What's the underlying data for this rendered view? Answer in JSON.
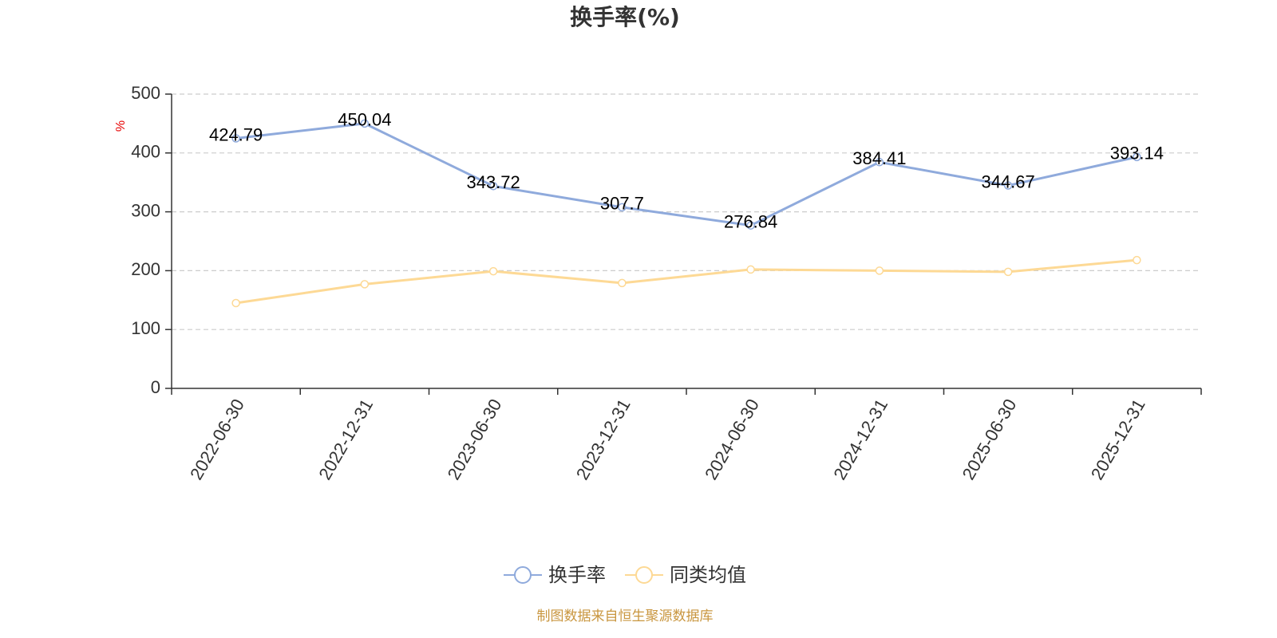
{
  "chart_data": {
    "type": "line",
    "title": "换手率(%)",
    "xlabel": "",
    "ylabel": "%",
    "ylabel_color": "#E60000",
    "categories": [
      "2022-06-30",
      "2022-12-31",
      "2023-06-30",
      "2023-12-31",
      "2024-06-30",
      "2024-12-31",
      "2025-06-30",
      "2025-12-31"
    ],
    "ylim": [
      0,
      500
    ],
    "yticks": [
      0,
      100,
      200,
      300,
      400,
      500
    ],
    "grid": true,
    "legend_position": "bottom-center",
    "series": [
      {
        "name": "换手率",
        "values": [
          424.79,
          450.04,
          343.72,
          307.7,
          276.84,
          384.41,
          344.67,
          393.14
        ],
        "color": "#8FAADC",
        "show_labels": true
      },
      {
        "name": "同类均值",
        "values": [
          145,
          177,
          199,
          179,
          202,
          200,
          198,
          218
        ],
        "color": "#FDD995",
        "show_labels": false
      }
    ]
  },
  "footer": {
    "source": "制图数据来自恒生聚源数据库",
    "color": "#C9963F"
  }
}
